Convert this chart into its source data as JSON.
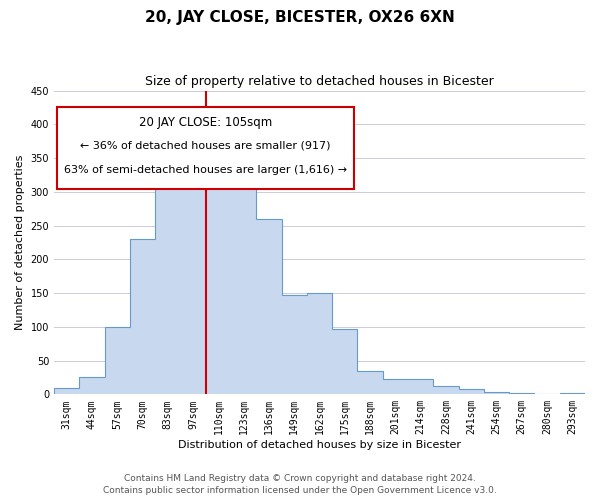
{
  "title": "20, JAY CLOSE, BICESTER, OX26 6XN",
  "subtitle": "Size of property relative to detached houses in Bicester",
  "xlabel": "Distribution of detached houses by size in Bicester",
  "ylabel": "Number of detached properties",
  "footer_line1": "Contains HM Land Registry data © Crown copyright and database right 2024.",
  "footer_line2": "Contains public sector information licensed under the Open Government Licence v3.0.",
  "bar_labels": [
    "31sqm",
    "44sqm",
    "57sqm",
    "70sqm",
    "83sqm",
    "97sqm",
    "110sqm",
    "123sqm",
    "136sqm",
    "149sqm",
    "162sqm",
    "175sqm",
    "188sqm",
    "201sqm",
    "214sqm",
    "228sqm",
    "241sqm",
    "254sqm",
    "267sqm",
    "280sqm",
    "293sqm"
  ],
  "bar_heights": [
    10,
    25,
    100,
    230,
    365,
    370,
    375,
    355,
    260,
    147,
    150,
    97,
    35,
    22,
    22,
    12,
    8,
    3,
    2,
    1,
    2
  ],
  "bar_color": "#c8d9ef",
  "bar_edge_color": "#6699cc",
  "red_line_after_bar": 5,
  "highlight_bar_edge_color": "#cc0000",
  "property_label": "20 JAY CLOSE: 105sqm",
  "pct_smaller": 36,
  "n_smaller": 917,
  "pct_larger": 63,
  "n_larger": 1616,
  "annotation_box_edge_color": "#cc0000",
  "ylim": [
    0,
    450
  ],
  "yticks": [
    0,
    50,
    100,
    150,
    200,
    250,
    300,
    350,
    400,
    450
  ],
  "background_color": "#ffffff",
  "grid_color": "#ccccdd",
  "title_fontsize": 11,
  "subtitle_fontsize": 9,
  "axis_label_fontsize": 8,
  "tick_fontsize": 7,
  "annotation_fontsize": 8,
  "footer_fontsize": 6.5
}
